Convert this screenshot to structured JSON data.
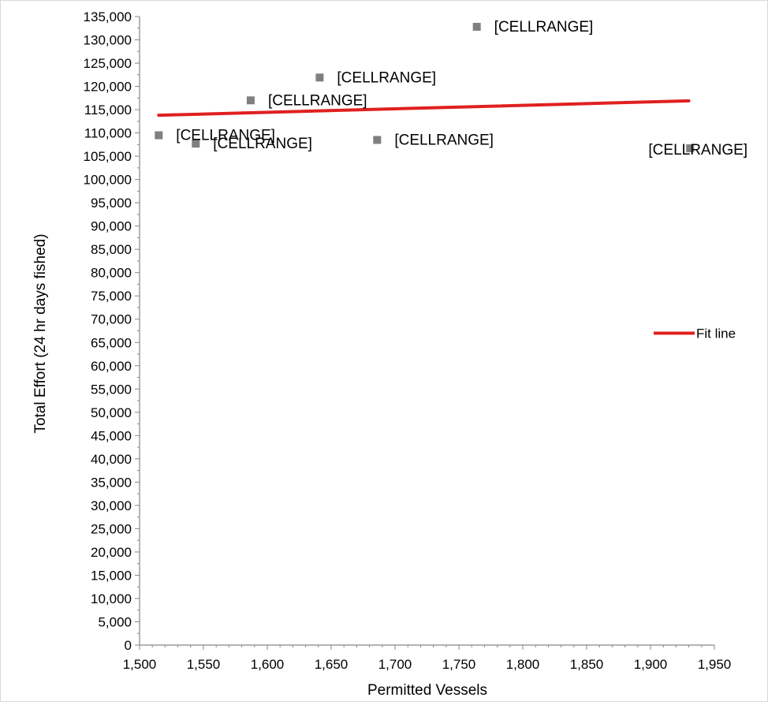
{
  "chart_data": {
    "type": "scatter",
    "title": "",
    "xlabel": "Permitted Vessels",
    "ylabel": "Total Effort (24 hr days fished)",
    "xlim": [
      1500,
      1950
    ],
    "ylim": [
      0,
      135000
    ],
    "x_ticks": [
      "1,500",
      "1,550",
      "1,600",
      "1,650",
      "1,700",
      "1,750",
      "1,800",
      "1,850",
      "1,900",
      "1,950"
    ],
    "y_ticks": [
      "0",
      "5,000",
      "10,000",
      "15,000",
      "20,000",
      "25,000",
      "30,000",
      "35,000",
      "40,000",
      "45,000",
      "50,000",
      "55,000",
      "60,000",
      "65,000",
      "70,000",
      "75,000",
      "80,000",
      "85,000",
      "90,000",
      "95,000",
      "100,000",
      "105,000",
      "110,000",
      "115,000",
      "120,000",
      "125,000",
      "130,000",
      "135,000"
    ],
    "grid": false,
    "legend": {
      "position": "right",
      "entries": [
        "Fit line"
      ]
    },
    "points": [
      {
        "x": 1515,
        "y": 109500,
        "label": "[CELLRANGE]"
      },
      {
        "x": 1544,
        "y": 107700,
        "label": "[CELLRANGE]"
      },
      {
        "x": 1587,
        "y": 117000,
        "label": "[CELLRANGE]"
      },
      {
        "x": 1641,
        "y": 121900,
        "label": "[CELLRANGE]"
      },
      {
        "x": 1686,
        "y": 108500,
        "label": "[CELLRANGE]"
      },
      {
        "x": 1764,
        "y": 132800,
        "label": "[CELLRANGE]"
      },
      {
        "x": 1931,
        "y": 106700,
        "label": "[CELLRANGE]"
      }
    ],
    "fit_line": {
      "name": "Fit line",
      "x": [
        1515,
        1930
      ],
      "y": [
        113800,
        116900
      ]
    },
    "colors": {
      "points": "#7f7f7f",
      "fit_line": "#e02020",
      "axis": "#868686"
    }
  }
}
